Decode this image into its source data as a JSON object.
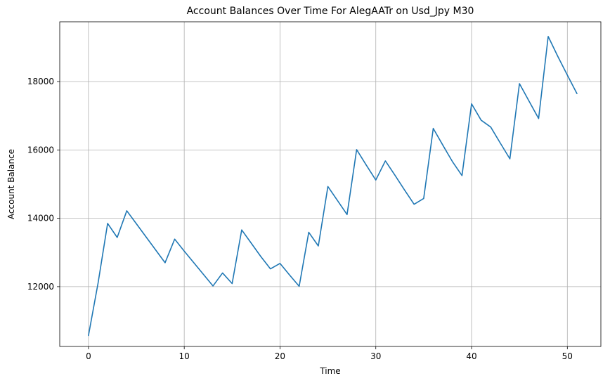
{
  "chart_data": {
    "type": "line",
    "title": "Account Balances Over Time For AlegAATr on Usd_Jpy M30",
    "xlabel": "Time",
    "ylabel": "Account Balance",
    "xlim": [
      -3,
      53.5
    ],
    "ylim": [
      10250,
      19750
    ],
    "xticks": [
      0,
      10,
      20,
      30,
      40,
      50
    ],
    "yticks": [
      12000,
      14000,
      16000,
      18000
    ],
    "grid": true,
    "legend": "none",
    "line_color": "#1f77b4",
    "x": [
      0,
      1,
      2,
      3,
      4,
      5,
      6,
      7,
      8,
      9,
      10,
      11,
      12,
      13,
      14,
      15,
      16,
      17,
      18,
      19,
      20,
      21,
      22,
      23,
      24,
      25,
      26,
      27,
      28,
      29,
      30,
      31,
      32,
      33,
      34,
      35,
      36,
      37,
      38,
      39,
      40,
      41,
      42,
      43,
      44,
      45,
      46,
      47,
      48,
      49,
      50,
      51
    ],
    "y": [
      10570,
      12100,
      13850,
      13440,
      14220,
      13840,
      13460,
      13080,
      12700,
      13390,
      13040,
      12700,
      12360,
      12020,
      12400,
      12090,
      13660,
      13270,
      12880,
      12520,
      12680,
      12340,
      12010,
      13590,
      13190,
      14930,
      14520,
      14110,
      16010,
      15560,
      15120,
      15680,
      15260,
      14830,
      14410,
      14580,
      16630,
      16140,
      15660,
      15250,
      17350,
      16870,
      16670,
      16200,
      15740,
      17940,
      17430,
      16920,
      19320,
      18740,
      18190,
      17650
    ]
  }
}
